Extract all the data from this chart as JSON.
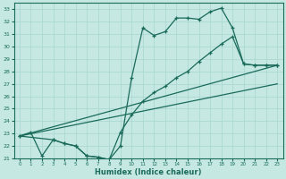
{
  "xlabel": "Humidex (Indice chaleur)",
  "bg_color": "#c5e8e3",
  "grid_color": "#a8d5ce",
  "line_color": "#1a6b5a",
  "xlim": [
    -0.5,
    23.5
  ],
  "ylim": [
    21,
    33.5
  ],
  "yticks": [
    21,
    22,
    23,
    24,
    25,
    26,
    27,
    28,
    29,
    30,
    31,
    32,
    33
  ],
  "xticks": [
    0,
    1,
    2,
    3,
    4,
    5,
    6,
    7,
    8,
    9,
    10,
    11,
    12,
    13,
    14,
    15,
    16,
    17,
    18,
    19,
    20,
    21,
    22,
    23
  ],
  "line1_x": [
    0,
    1,
    2,
    3,
    4,
    5,
    6,
    7,
    8,
    9,
    10,
    11,
    12,
    13,
    14,
    15,
    16,
    17,
    18,
    19,
    20,
    21,
    22,
    23
  ],
  "line1_y": [
    22.8,
    23.1,
    21.2,
    22.5,
    22.2,
    22.0,
    21.2,
    21.1,
    20.9,
    22.0,
    27.5,
    31.5,
    30.9,
    31.2,
    32.3,
    32.3,
    32.2,
    32.8,
    33.1,
    31.5,
    28.6,
    28.5,
    28.5,
    28.5
  ],
  "line2_x": [
    0,
    3,
    4,
    5,
    6,
    7,
    8,
    9,
    10,
    11,
    12,
    13,
    14,
    15,
    16,
    17,
    18,
    19,
    20,
    21,
    22,
    23
  ],
  "line2_y": [
    22.8,
    22.5,
    22.2,
    22.0,
    21.2,
    21.1,
    20.9,
    23.1,
    24.5,
    25.6,
    26.3,
    26.8,
    27.5,
    28.0,
    28.8,
    29.5,
    30.2,
    30.8,
    28.6,
    28.5,
    28.5,
    28.5
  ],
  "line3_x": [
    0,
    23
  ],
  "line3_y": [
    22.8,
    28.5
  ],
  "line4_x": [
    0,
    23
  ],
  "line4_y": [
    22.8,
    27.0
  ]
}
